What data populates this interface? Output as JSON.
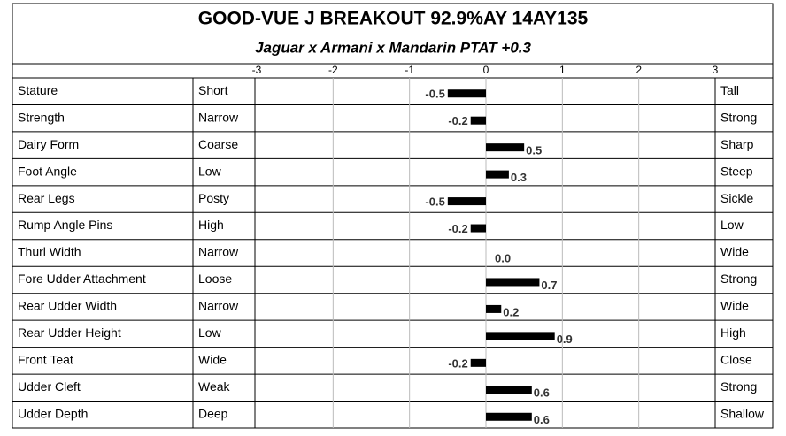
{
  "chart_data": {
    "type": "bar",
    "title": "GOOD-VUE J BREAKOUT  92.9%AY   14AY135",
    "subtitle": "Jaguar x Armani x Mandarin     PTAT +0.3",
    "categories": [
      "Stature",
      "Strength",
      "Dairy Form",
      "Foot Angle",
      "Rear Legs",
      "Rump Angle Pins",
      "Thurl Width",
      "Fore Udder Attachment",
      "Rear Udder Width",
      "Rear Udder Height",
      "Front Teat",
      "Udder Cleft",
      "Udder Depth"
    ],
    "low_labels": [
      "Short",
      "Narrow",
      "Coarse",
      "Low",
      "Posty",
      "High",
      "Narrow",
      "Loose",
      "Narrow",
      "Low",
      "Wide",
      "Weak",
      "Deep"
    ],
    "high_labels": [
      "Tall",
      "Strong",
      "Sharp",
      "Steep",
      "Sickle",
      "Low",
      "Wide",
      "Strong",
      "Wide",
      "High",
      "Close",
      "Strong",
      "Shallow"
    ],
    "values": [
      -0.5,
      -0.2,
      0.5,
      0.3,
      -0.5,
      -0.2,
      0.0,
      0.7,
      0.2,
      0.9,
      -0.2,
      0.6,
      0.6
    ],
    "value_labels": [
      "-0.5",
      "-0.2",
      "0.5",
      "0.3",
      "-0.5",
      "-0.2",
      "0.0",
      "0.7",
      "0.2",
      "0.9",
      "-0.2",
      "0.6",
      "0.6"
    ],
    "color": "#000000",
    "xlim": [
      -3,
      3
    ],
    "xticks": [
      -3,
      -2,
      -1,
      0,
      1,
      2,
      3
    ],
    "grid": true
  }
}
